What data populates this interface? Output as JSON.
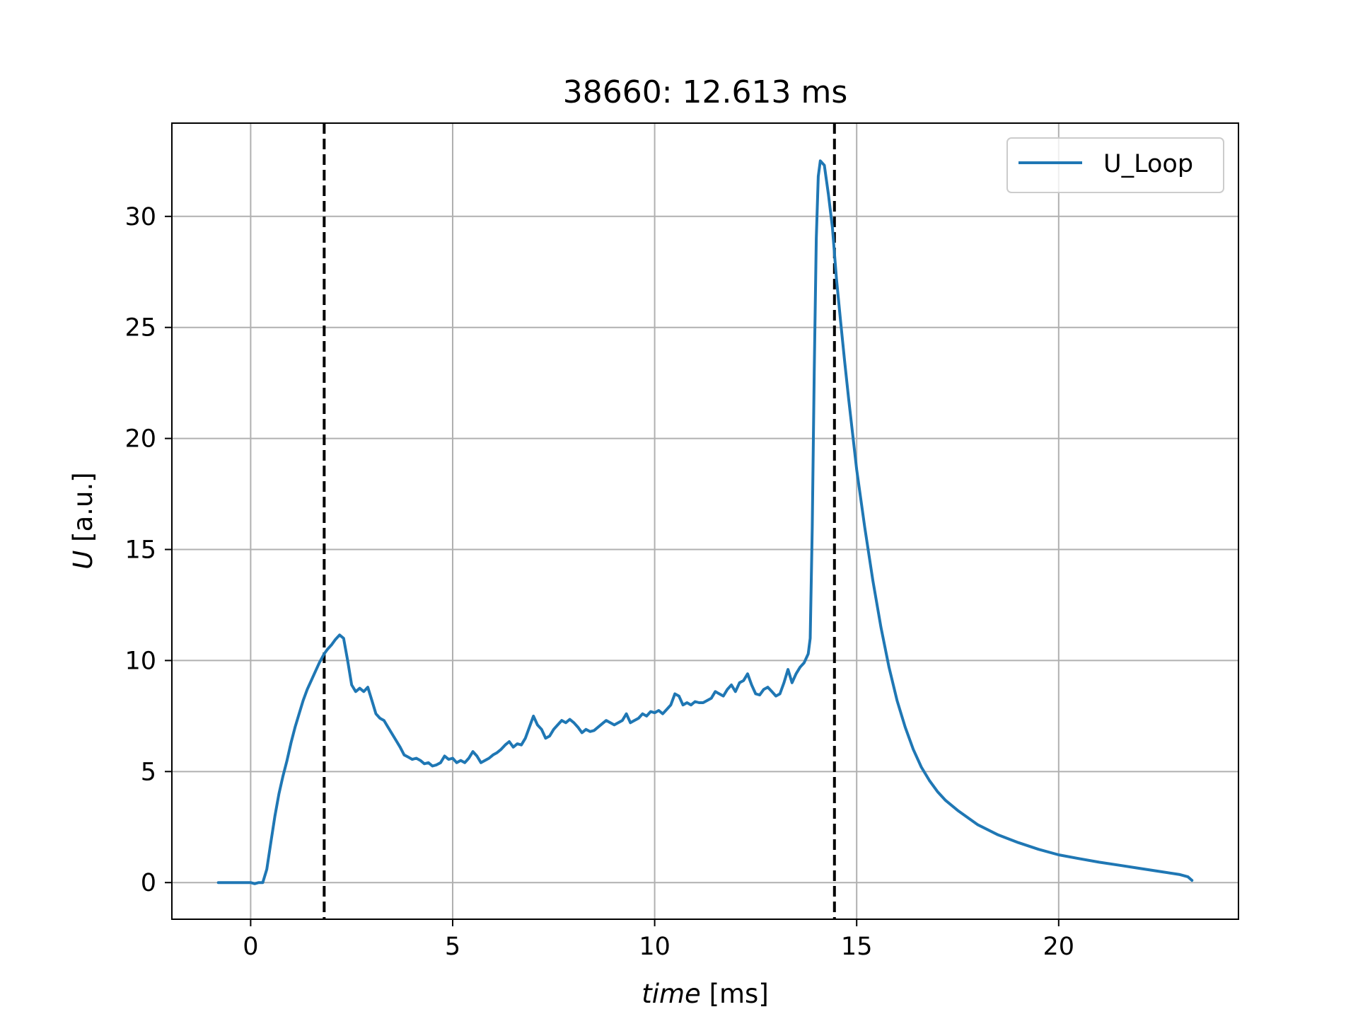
{
  "chart_data": {
    "type": "line",
    "title": "38660: 12.613 ms",
    "xlabel_var": "time",
    "xlabel_unit": " [ms]",
    "ylabel_var": "U",
    "ylabel_unit": " [a.u.]",
    "xlim": [
      -1.95,
      24.45
    ],
    "ylim": [
      -1.65,
      34.2
    ],
    "xticks": [
      0,
      5,
      10,
      15,
      20
    ],
    "yticks": [
      0,
      5,
      10,
      15,
      20,
      25,
      30
    ],
    "grid": true,
    "legend_position": "top-right",
    "vlines": [
      1.82,
      14.45
    ],
    "series": [
      {
        "name": "U_Loop",
        "color": "#1f77b4",
        "points": [
          [
            -0.8,
            0.0
          ],
          [
            -0.4,
            0.0
          ],
          [
            0.0,
            0.0
          ],
          [
            0.1,
            -0.05
          ],
          [
            0.2,
            0.0
          ],
          [
            0.3,
            0.0
          ],
          [
            0.4,
            0.6
          ],
          [
            0.5,
            1.8
          ],
          [
            0.6,
            3.0
          ],
          [
            0.7,
            4.0
          ],
          [
            0.8,
            4.8
          ],
          [
            0.9,
            5.5
          ],
          [
            1.0,
            6.3
          ],
          [
            1.1,
            7.0
          ],
          [
            1.2,
            7.6
          ],
          [
            1.3,
            8.2
          ],
          [
            1.4,
            8.7
          ],
          [
            1.5,
            9.1
          ],
          [
            1.6,
            9.5
          ],
          [
            1.7,
            9.9
          ],
          [
            1.82,
            10.3
          ],
          [
            1.9,
            10.5
          ],
          [
            2.0,
            10.7
          ],
          [
            2.1,
            10.95
          ],
          [
            2.2,
            11.15
          ],
          [
            2.3,
            11.0
          ],
          [
            2.4,
            10.0
          ],
          [
            2.5,
            8.9
          ],
          [
            2.6,
            8.6
          ],
          [
            2.7,
            8.75
          ],
          [
            2.8,
            8.6
          ],
          [
            2.9,
            8.8
          ],
          [
            3.0,
            8.2
          ],
          [
            3.1,
            7.6
          ],
          [
            3.2,
            7.4
          ],
          [
            3.3,
            7.3
          ],
          [
            3.4,
            7.0
          ],
          [
            3.5,
            6.7
          ],
          [
            3.6,
            6.4
          ],
          [
            3.7,
            6.1
          ],
          [
            3.8,
            5.75
          ],
          [
            3.9,
            5.65
          ],
          [
            4.0,
            5.55
          ],
          [
            4.1,
            5.6
          ],
          [
            4.2,
            5.5
          ],
          [
            4.3,
            5.35
          ],
          [
            4.4,
            5.4
          ],
          [
            4.5,
            5.25
          ],
          [
            4.6,
            5.3
          ],
          [
            4.7,
            5.4
          ],
          [
            4.8,
            5.7
          ],
          [
            4.9,
            5.55
          ],
          [
            5.0,
            5.6
          ],
          [
            5.1,
            5.4
          ],
          [
            5.2,
            5.5
          ],
          [
            5.3,
            5.4
          ],
          [
            5.4,
            5.6
          ],
          [
            5.5,
            5.9
          ],
          [
            5.6,
            5.7
          ],
          [
            5.7,
            5.4
          ],
          [
            5.8,
            5.5
          ],
          [
            5.9,
            5.6
          ],
          [
            6.0,
            5.75
          ],
          [
            6.1,
            5.85
          ],
          [
            6.2,
            6.0
          ],
          [
            6.3,
            6.2
          ],
          [
            6.4,
            6.35
          ],
          [
            6.5,
            6.1
          ],
          [
            6.6,
            6.25
          ],
          [
            6.7,
            6.2
          ],
          [
            6.8,
            6.5
          ],
          [
            6.9,
            7.0
          ],
          [
            7.0,
            7.5
          ],
          [
            7.1,
            7.1
          ],
          [
            7.2,
            6.9
          ],
          [
            7.3,
            6.5
          ],
          [
            7.4,
            6.6
          ],
          [
            7.5,
            6.9
          ],
          [
            7.6,
            7.1
          ],
          [
            7.7,
            7.3
          ],
          [
            7.8,
            7.2
          ],
          [
            7.9,
            7.35
          ],
          [
            8.0,
            7.2
          ],
          [
            8.1,
            7.0
          ],
          [
            8.2,
            6.75
          ],
          [
            8.3,
            6.9
          ],
          [
            8.4,
            6.8
          ],
          [
            8.5,
            6.85
          ],
          [
            8.6,
            7.0
          ],
          [
            8.7,
            7.15
          ],
          [
            8.8,
            7.3
          ],
          [
            8.9,
            7.2
          ],
          [
            9.0,
            7.1
          ],
          [
            9.1,
            7.2
          ],
          [
            9.2,
            7.3
          ],
          [
            9.3,
            7.6
          ],
          [
            9.4,
            7.2
          ],
          [
            9.5,
            7.3
          ],
          [
            9.6,
            7.4
          ],
          [
            9.7,
            7.6
          ],
          [
            9.8,
            7.5
          ],
          [
            9.9,
            7.7
          ],
          [
            10.0,
            7.65
          ],
          [
            10.1,
            7.75
          ],
          [
            10.2,
            7.6
          ],
          [
            10.3,
            7.8
          ],
          [
            10.4,
            8.0
          ],
          [
            10.5,
            8.5
          ],
          [
            10.6,
            8.4
          ],
          [
            10.7,
            8.0
          ],
          [
            10.8,
            8.1
          ],
          [
            10.9,
            8.0
          ],
          [
            11.0,
            8.15
          ],
          [
            11.1,
            8.1
          ],
          [
            11.2,
            8.1
          ],
          [
            11.3,
            8.2
          ],
          [
            11.4,
            8.3
          ],
          [
            11.5,
            8.6
          ],
          [
            11.6,
            8.5
          ],
          [
            11.7,
            8.4
          ],
          [
            11.8,
            8.7
          ],
          [
            11.9,
            8.9
          ],
          [
            12.0,
            8.6
          ],
          [
            12.1,
            9.0
          ],
          [
            12.2,
            9.1
          ],
          [
            12.3,
            9.4
          ],
          [
            12.4,
            8.9
          ],
          [
            12.5,
            8.5
          ],
          [
            12.6,
            8.45
          ],
          [
            12.7,
            8.7
          ],
          [
            12.8,
            8.8
          ],
          [
            12.9,
            8.6
          ],
          [
            13.0,
            8.4
          ],
          [
            13.1,
            8.5
          ],
          [
            13.2,
            9.0
          ],
          [
            13.3,
            9.6
          ],
          [
            13.4,
            9.0
          ],
          [
            13.5,
            9.4
          ],
          [
            13.6,
            9.7
          ],
          [
            13.7,
            9.9
          ],
          [
            13.8,
            10.3
          ],
          [
            13.85,
            11.0
          ],
          [
            13.9,
            16.0
          ],
          [
            13.95,
            23.0
          ],
          [
            14.0,
            29.0
          ],
          [
            14.05,
            31.8
          ],
          [
            14.1,
            32.5
          ],
          [
            14.2,
            32.3
          ],
          [
            14.3,
            31.0
          ],
          [
            14.4,
            29.5
          ],
          [
            14.5,
            27.2
          ],
          [
            14.6,
            25.3
          ],
          [
            14.7,
            23.5
          ],
          [
            14.8,
            21.8
          ],
          [
            14.9,
            20.2
          ],
          [
            15.0,
            18.6
          ],
          [
            15.2,
            16.0
          ],
          [
            15.4,
            13.6
          ],
          [
            15.6,
            11.5
          ],
          [
            15.8,
            9.7
          ],
          [
            16.0,
            8.2
          ],
          [
            16.2,
            7.0
          ],
          [
            16.4,
            6.0
          ],
          [
            16.6,
            5.2
          ],
          [
            16.8,
            4.6
          ],
          [
            17.0,
            4.1
          ],
          [
            17.2,
            3.7
          ],
          [
            17.5,
            3.25
          ],
          [
            18.0,
            2.6
          ],
          [
            18.5,
            2.15
          ],
          [
            19.0,
            1.8
          ],
          [
            19.5,
            1.5
          ],
          [
            20.0,
            1.25
          ],
          [
            20.5,
            1.08
          ],
          [
            21.0,
            0.92
          ],
          [
            21.5,
            0.78
          ],
          [
            22.0,
            0.64
          ],
          [
            22.5,
            0.5
          ],
          [
            23.0,
            0.36
          ],
          [
            23.2,
            0.26
          ],
          [
            23.3,
            0.1
          ]
        ]
      }
    ]
  }
}
